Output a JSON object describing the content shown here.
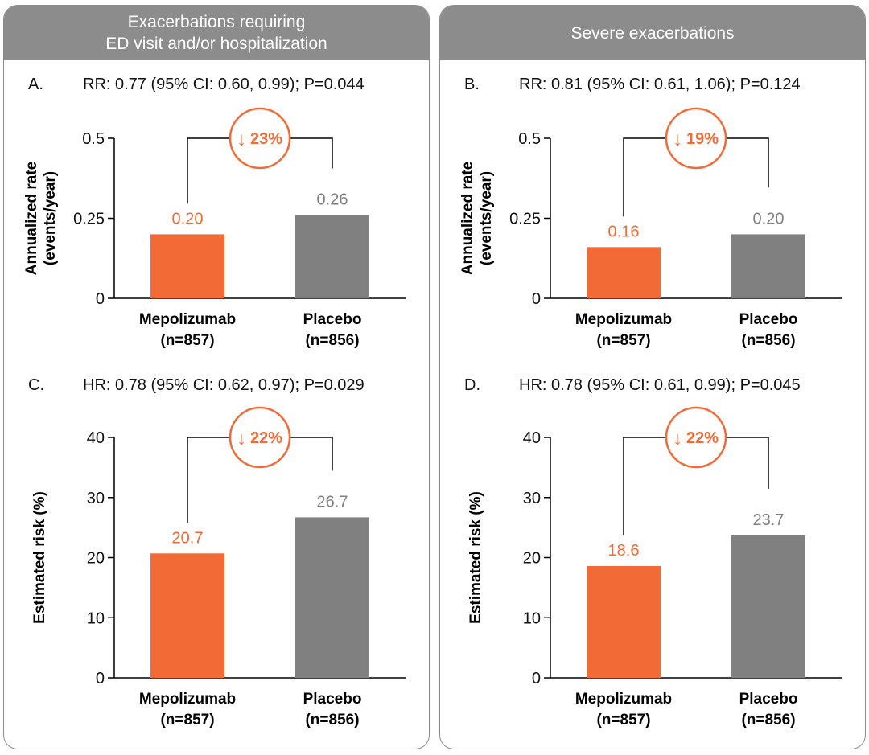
{
  "panels": [
    {
      "title": "Exacerbations requiring\nED visit and/or hospitalization"
    },
    {
      "title": "Severe exacerbations"
    }
  ],
  "colors": {
    "mepolizumab": "#f26a35",
    "placebo": "#808080",
    "header": "#8c8c8c"
  },
  "chart_data": [
    {
      "type": "bar",
      "panel_label": "A.",
      "stat": "RR: 0.77 (95% CI: 0.60, 0.99); P=0.044",
      "ylabel": "Annualized rate\n(events/year)",
      "ylim": [
        0,
        0.5
      ],
      "yticks": [
        0,
        0.25,
        0.5
      ],
      "yticklabels": [
        "0",
        "0.25",
        "0.5"
      ],
      "categories": [
        "Mepolizumab\n(n=857)",
        "Placebo\n(n=856)"
      ],
      "values": [
        0.2,
        0.26
      ],
      "value_labels": [
        "0.20",
        "0.26"
      ],
      "reduction": "23%",
      "reduction_arrow": "↓"
    },
    {
      "type": "bar",
      "panel_label": "B.",
      "stat": "RR: 0.81 (95% CI: 0.61, 1.06); P=0.124",
      "ylabel": "Annualized rate\n(events/year)",
      "ylim": [
        0,
        0.5
      ],
      "yticks": [
        0,
        0.25,
        0.5
      ],
      "yticklabels": [
        "0",
        "0.25",
        "0.5"
      ],
      "categories": [
        "Mepolizumab\n(n=857)",
        "Placebo\n(n=856)"
      ],
      "values": [
        0.16,
        0.2
      ],
      "value_labels": [
        "0.16",
        "0.20"
      ],
      "reduction": "19%",
      "reduction_arrow": "↓"
    },
    {
      "type": "bar",
      "panel_label": "C.",
      "stat": "HR: 0.78 (95% CI: 0.62, 0.97); P=0.029",
      "ylabel": "Estimated risk (%)",
      "ylim": [
        0,
        40
      ],
      "yticks": [
        0,
        10,
        20,
        30,
        40
      ],
      "yticklabels": [
        "0",
        "10",
        "20",
        "30",
        "40"
      ],
      "categories": [
        "Mepolizumab\n(n=857)",
        "Placebo\n(n=856)"
      ],
      "values": [
        20.7,
        26.7
      ],
      "value_labels": [
        "20.7",
        "26.7"
      ],
      "reduction": "22%",
      "reduction_arrow": "↓"
    },
    {
      "type": "bar",
      "panel_label": "D.",
      "stat": "HR: 0.78 (95% CI: 0.61, 0.99); P=0.045",
      "ylabel": "Estimated risk (%)",
      "ylim": [
        0,
        40
      ],
      "yticks": [
        0,
        10,
        20,
        30,
        40
      ],
      "yticklabels": [
        "0",
        "10",
        "20",
        "30",
        "40"
      ],
      "categories": [
        "Mepolizumab\n(n=857)",
        "Placebo\n(n=856)"
      ],
      "values": [
        18.6,
        23.7
      ],
      "value_labels": [
        "18.6",
        "23.7"
      ],
      "reduction": "22%",
      "reduction_arrow": "↓"
    }
  ]
}
